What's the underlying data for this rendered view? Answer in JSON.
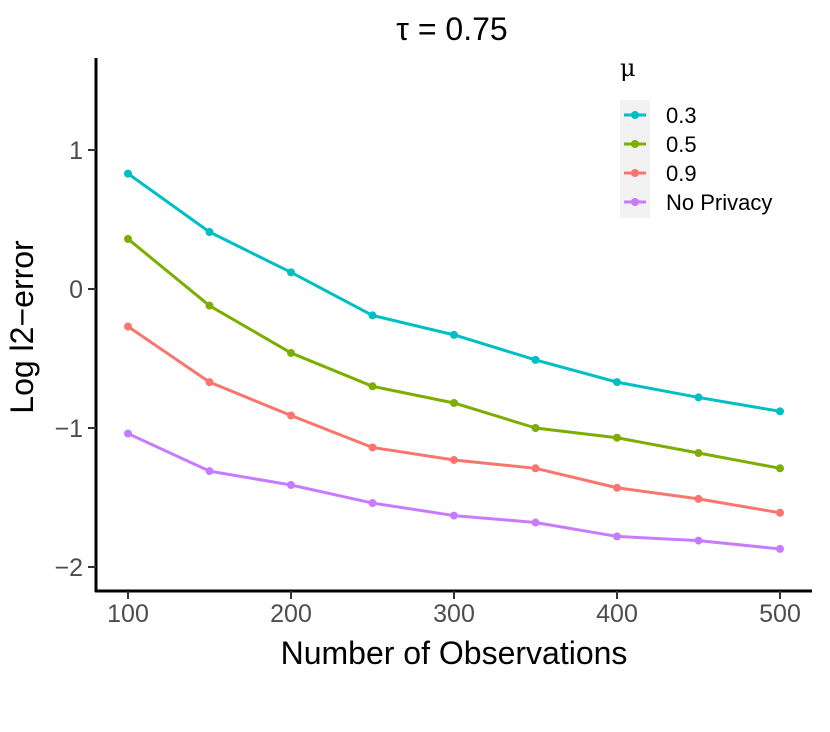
{
  "chart_data": {
    "type": "line",
    "title": "τ = 0.75",
    "xlabel": "Number of Observations",
    "ylabel": "Log l2−error",
    "x": [
      100,
      150,
      200,
      250,
      300,
      350,
      400,
      450,
      500
    ],
    "xlim": [
      100,
      500
    ],
    "ylim": [
      -2,
      1
    ],
    "x_ticks": [
      100,
      200,
      300,
      400,
      500
    ],
    "x_tick_labels": [
      "100",
      "200",
      "300",
      "400",
      "500"
    ],
    "y_ticks": [
      1,
      0,
      -1,
      -2
    ],
    "y_tick_labels": [
      "1",
      "0",
      "−1",
      "−2"
    ],
    "grid": false,
    "legend": {
      "title": "μ",
      "position": "top-right"
    },
    "series": [
      {
        "name": "0.3",
        "color": "#00bfc4",
        "values": [
          0.83,
          0.41,
          0.12,
          -0.19,
          -0.33,
          -0.51,
          -0.67,
          -0.78,
          -0.88
        ]
      },
      {
        "name": "0.5",
        "color": "#7cae00",
        "values": [
          0.36,
          -0.12,
          -0.46,
          -0.7,
          -0.82,
          -1.0,
          -1.07,
          -1.18,
          -1.29
        ]
      },
      {
        "name": "0.9",
        "color": "#f8766d",
        "values": [
          -0.27,
          -0.67,
          -0.91,
          -1.14,
          -1.23,
          -1.29,
          -1.43,
          -1.51,
          -1.61
        ]
      },
      {
        "name": "No Privacy",
        "color": "#c77cff",
        "values": [
          -1.04,
          -1.31,
          -1.41,
          -1.54,
          -1.63,
          -1.68,
          -1.78,
          -1.81,
          -1.87
        ]
      }
    ]
  }
}
